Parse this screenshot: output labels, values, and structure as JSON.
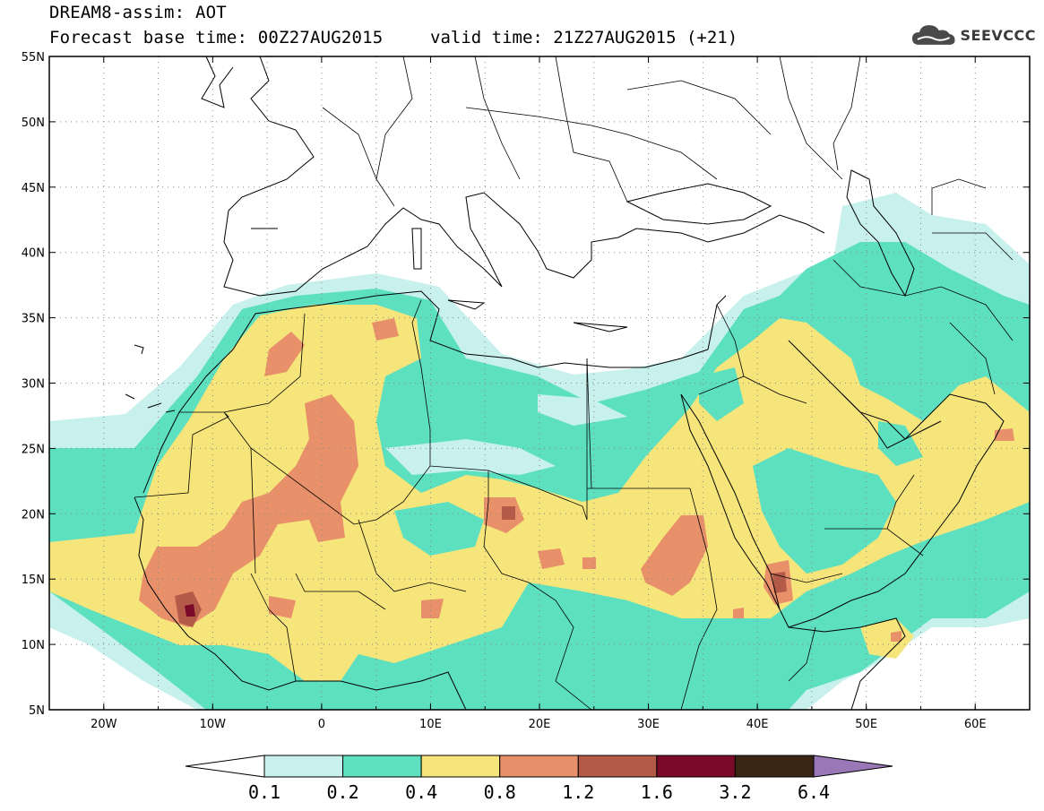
{
  "title": {
    "line1": "DREAM8-assim: AOT",
    "line2": "Forecast base time: 00Z27AUG2015",
    "line2b": "valid time: 21Z27AUG2015 (+21)"
  },
  "logo": {
    "text": "SEEVCCC",
    "icon": "cloud-icon",
    "color": "#4a4a4a"
  },
  "map": {
    "lon_range": [
      -25,
      65
    ],
    "lat_range": [
      5,
      55
    ],
    "x_ticks": [
      "20W",
      "10W",
      "0",
      "10E",
      "20E",
      "30E",
      "40E",
      "50E",
      "60E"
    ],
    "y_ticks": [
      "5N",
      "10N",
      "15N",
      "20N",
      "25N",
      "30N",
      "35N",
      "40N",
      "45N",
      "50N",
      "55N"
    ],
    "gridlines": true
  },
  "colorbar": {
    "labels": [
      "0.1",
      "0.2",
      "0.4",
      "0.8",
      "1.2",
      "1.6",
      "3.2",
      "6.4"
    ],
    "colors": [
      "#c8f0ec",
      "#5ce0c0",
      "#f6e57a",
      "#e8906a",
      "#b45a48",
      "#7a0a28",
      "#3a2614",
      "#9a78b8"
    ]
  }
}
